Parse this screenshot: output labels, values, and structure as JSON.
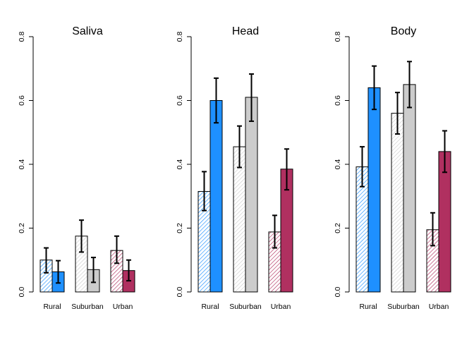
{
  "chart_data": [
    {
      "type": "bar",
      "title": "Saliva",
      "categories": [
        "Rural",
        "Suburban",
        "Urban"
      ],
      "ylim": [
        0,
        0.8
      ],
      "yticks": [
        "0.0",
        "0.2",
        "0.4",
        "0.6",
        "0.8"
      ],
      "series": [
        {
          "values": [
            0.1,
            0.175,
            0.13
          ],
          "lower": [
            0.06,
            0.125,
            0.09
          ],
          "upper": [
            0.138,
            0.225,
            0.175
          ],
          "pattern": "hatched"
        },
        {
          "values": [
            0.063,
            0.07,
            0.067
          ],
          "lower": [
            0.028,
            0.03,
            0.035
          ],
          "upper": [
            0.098,
            0.108,
            0.1
          ],
          "pattern": "solid"
        }
      ]
    },
    {
      "type": "bar",
      "title": "Head",
      "categories": [
        "Rural",
        "Suburban",
        "Urban"
      ],
      "ylim": [
        0,
        0.8
      ],
      "yticks": [
        "0.0",
        "0.2",
        "0.4",
        "0.6",
        "0.8"
      ],
      "series": [
        {
          "values": [
            0.315,
            0.455,
            0.188
          ],
          "lower": [
            0.255,
            0.39,
            0.138
          ],
          "upper": [
            0.377,
            0.52,
            0.24
          ],
          "pattern": "hatched"
        },
        {
          "values": [
            0.6,
            0.61,
            0.385
          ],
          "lower": [
            0.53,
            0.535,
            0.32
          ],
          "upper": [
            0.67,
            0.683,
            0.448
          ],
          "pattern": "solid"
        }
      ]
    },
    {
      "type": "bar",
      "title": "Body",
      "categories": [
        "Rural",
        "Suburban",
        "Urban"
      ],
      "ylim": [
        0,
        0.8
      ],
      "yticks": [
        "0.0",
        "0.2",
        "0.4",
        "0.6",
        "0.8"
      ],
      "series": [
        {
          "values": [
            0.392,
            0.56,
            0.195
          ],
          "lower": [
            0.33,
            0.495,
            0.145
          ],
          "upper": [
            0.455,
            0.625,
            0.248
          ],
          "pattern": "hatched"
        },
        {
          "values": [
            0.64,
            0.65,
            0.44
          ],
          "lower": [
            0.572,
            0.578,
            0.375
          ],
          "upper": [
            0.708,
            0.722,
            0.505
          ],
          "pattern": "solid"
        }
      ]
    }
  ],
  "category_colors": {
    "Rural": "#1e90ff",
    "Suburban": "#cccccc",
    "Urban": "#b03060"
  }
}
